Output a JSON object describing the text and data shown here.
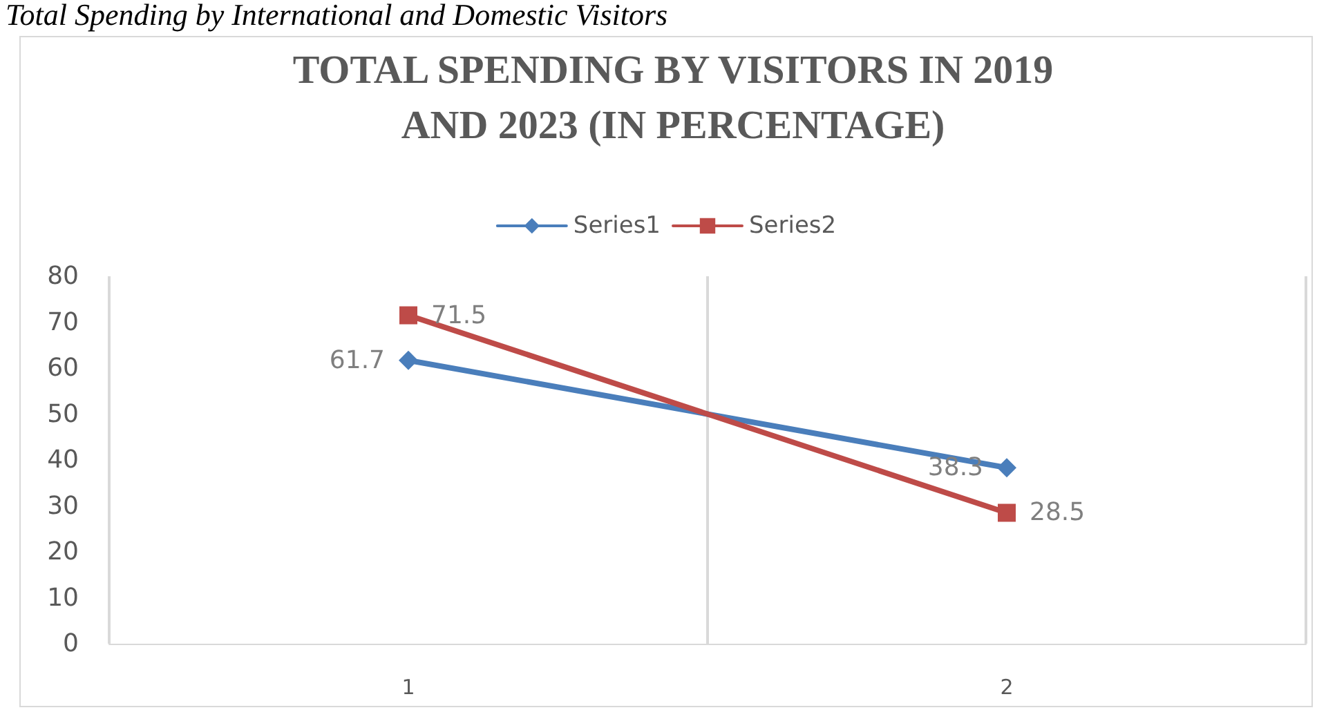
{
  "chart_data": {
    "type": "line",
    "title": "TOTAL SPENDING BY VISITORS IN 2019\nAND 2023 (IN PERCENTAGE)",
    "annotations": [
      "Total Spending by International and Domestic Visitors"
    ],
    "categories": [
      "1",
      "2"
    ],
    "series": [
      {
        "name": "Series1",
        "color": "#4a7ebb",
        "values": [
          61.7,
          38.3
        ],
        "marker": "diamond"
      },
      {
        "name": "Series2",
        "color": "#be4b48",
        "values": [
          71.5,
          28.5
        ],
        "marker": "square"
      }
    ],
    "ylim": [
      0,
      80
    ],
    "yticks": [
      0,
      10,
      20,
      30,
      40,
      50,
      60,
      70,
      80
    ],
    "grid": "x",
    "legend": "top",
    "data_labels": true
  }
}
